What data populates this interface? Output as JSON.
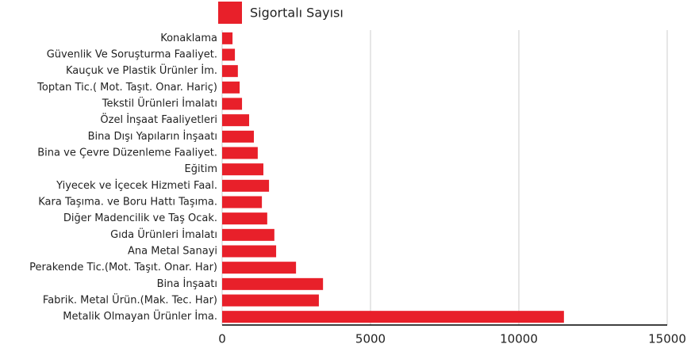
{
  "chart_data": {
    "type": "barh",
    "categories": [
      "Konaklama",
      "Güvenlik Ve Soruşturma Faaliyet.",
      "Kauçuk ve Plastik Ürünler İm.",
      "Toptan Tic.( Mot. Taşıt. Onar. Hariç)",
      "Tekstil Ürünleri İmalatı",
      "Özel İnşaat Faaliyetleri",
      "Bina Dışı Yapıların İnşaatı",
      "Bina ve Çevre Düzenleme Faaliyet.",
      "Eğitim",
      "Yiyecek ve İçecek Hizmeti Faal.",
      "Kara Taşıma. ve Boru Hattı Taşıma.",
      "Diğer Madencilik ve Taş Ocak.",
      "Gıda Ürünleri İmalatı",
      "Ana Metal Sanayi",
      "Perakende Tic.(Mot. Taşıt. Onar. Har)",
      "Bina İnşaatı",
      "Fabrik. Metal Ürün.(Mak. Tec. Har)",
      "Metalik Olmayan Ürünler İma."
    ],
    "series": [
      {
        "name": "Sigortalı Sayısı",
        "color": "#e8202a",
        "values": [
          350,
          430,
          530,
          590,
          670,
          910,
          1070,
          1200,
          1390,
          1580,
          1340,
          1520,
          1760,
          1820,
          2490,
          3400,
          3260,
          11520
        ]
      }
    ],
    "xlim": [
      0,
      15000
    ],
    "xticks": [
      0,
      5000,
      10000,
      15000
    ],
    "grid": true,
    "legend": "top"
  }
}
